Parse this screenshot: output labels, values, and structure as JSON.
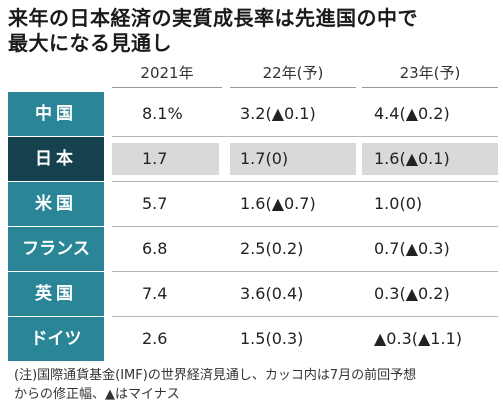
{
  "chart_data": {
    "type": "table",
    "title_lines": [
      "来年の日本経済の実質成長率は先進国の中で",
      "最大になる見通し"
    ],
    "columns": [
      "2021年",
      "22年(予)",
      "23年(予)"
    ],
    "rows": [
      {
        "country": "中国",
        "values": [
          "8.1%",
          "3.2(▲0.1)",
          "4.4(▲0.2)"
        ],
        "highlight": false
      },
      {
        "country": "日本",
        "values": [
          "1.7",
          "1.7(0)",
          "1.6(▲0.1)"
        ],
        "highlight": true
      },
      {
        "country": "米国",
        "values": [
          "5.7",
          "1.6(▲0.7)",
          "1.0(0)"
        ],
        "highlight": false
      },
      {
        "country": "フランス",
        "values": [
          "6.8",
          "2.5(0.2)",
          "0.7(▲0.3)"
        ],
        "highlight": false
      },
      {
        "country": "英国",
        "values": [
          "7.4",
          "3.6(0.4)",
          "0.3(▲0.2)"
        ],
        "highlight": false
      },
      {
        "country": "ドイツ",
        "values": [
          "2.6",
          "1.5(0.3)",
          "▲0.3(▲1.1)"
        ],
        "highlight": false
      }
    ],
    "note_lines": [
      "(注)国際通貨基金(IMF)の世界経済見通し、カッコ内は7月の前回予想",
      "からの修正幅、▲はマイナス"
    ]
  },
  "colors": {
    "country_cell": "#2a8596",
    "highlight_country_cell": "#16424f",
    "highlight_row": "#d9d9d9"
  }
}
